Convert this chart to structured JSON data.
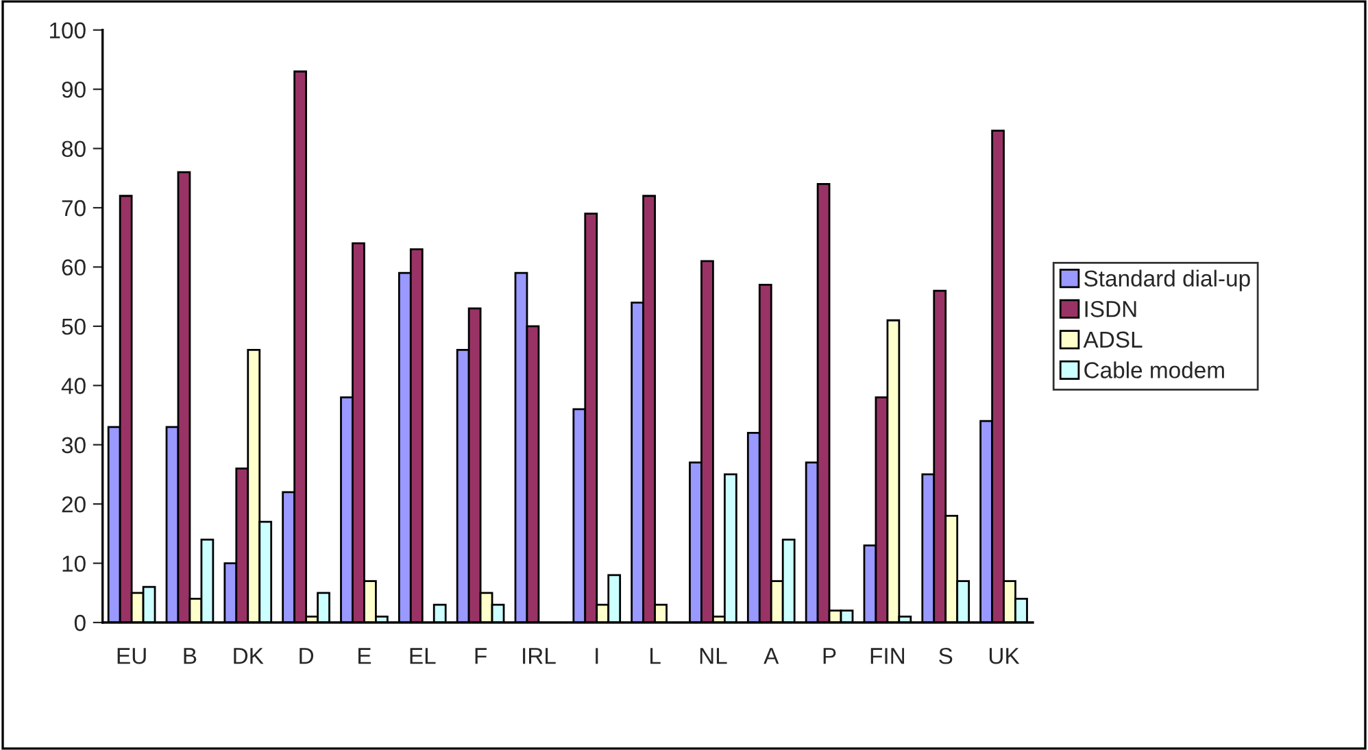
{
  "chart_data": {
    "type": "bar",
    "categories": [
      "EU",
      "B",
      "DK",
      "D",
      "E",
      "EL",
      "F",
      "IRL",
      "I",
      "L",
      "NL",
      "A",
      "P",
      "FIN",
      "S",
      "UK"
    ],
    "series": [
      {
        "name": "Standard dial-up",
        "color": "#9999ff",
        "values": [
          33,
          33,
          10,
          22,
          38,
          59,
          46,
          59,
          36,
          54,
          27,
          32,
          27,
          13,
          25,
          34
        ]
      },
      {
        "name": "ISDN",
        "color": "#993366",
        "values": [
          72,
          76,
          26,
          93,
          64,
          63,
          53,
          50,
          69,
          72,
          61,
          57,
          74,
          38,
          56,
          83
        ]
      },
      {
        "name": "ADSL",
        "color": "#ffffcc",
        "values": [
          5,
          4,
          46,
          1,
          7,
          0,
          5,
          0,
          3,
          3,
          1,
          7,
          2,
          51,
          18,
          7
        ]
      },
      {
        "name": "Cable modem",
        "color": "#ccffff",
        "values": [
          6,
          14,
          17,
          5,
          1,
          3,
          3,
          0,
          8,
          0,
          25,
          14,
          2,
          1,
          7,
          4
        ]
      }
    ],
    "ylim": [
      0,
      100
    ],
    "yticks": [
      0,
      10,
      20,
      30,
      40,
      50,
      60,
      70,
      80,
      90,
      100
    ],
    "grid": false,
    "legend": "right"
  }
}
